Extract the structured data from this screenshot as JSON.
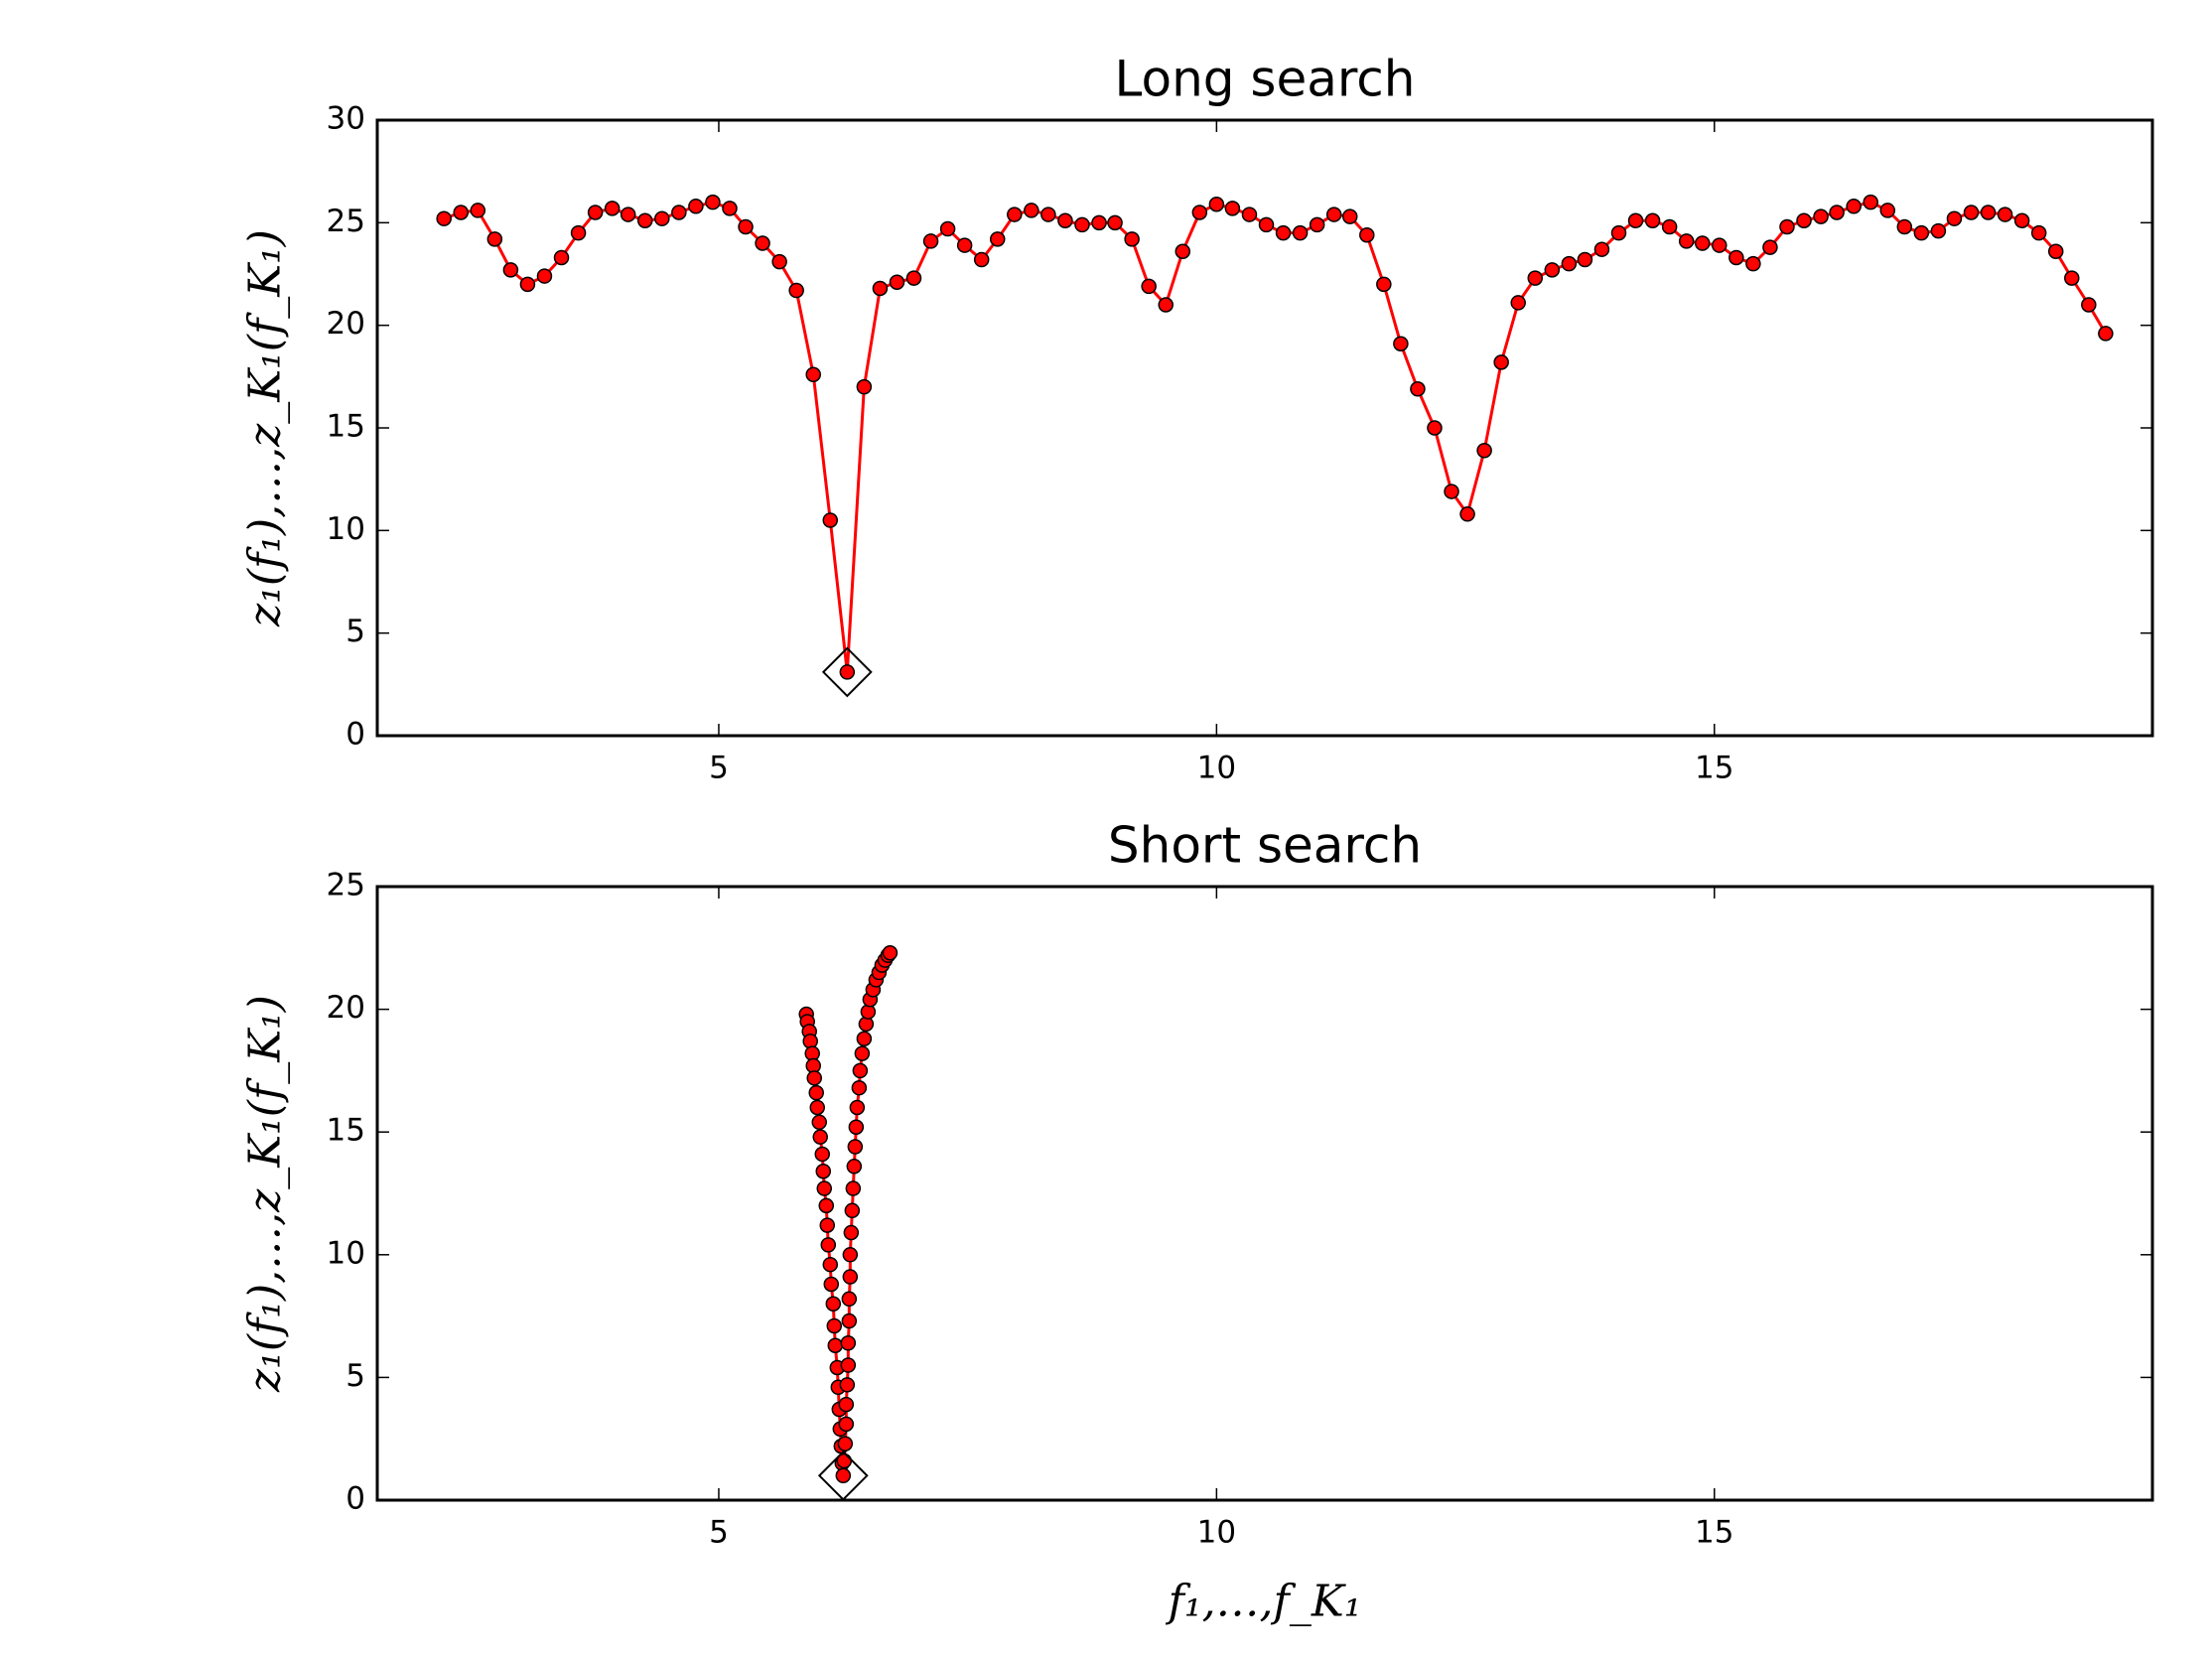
{
  "chart_data": [
    {
      "type": "line",
      "title": "Long search",
      "ylabel": "z₁(f₁),…,z_K₁(f_K₁)",
      "x": [
        2.24,
        2.41,
        2.58,
        2.75,
        2.91,
        3.08,
        3.25,
        3.42,
        3.59,
        3.76,
        3.93,
        4.09,
        4.26,
        4.43,
        4.6,
        4.77,
        4.94,
        5.11,
        5.27,
        5.44,
        5.61,
        5.78,
        5.95,
        6.12,
        6.29,
        6.46,
        6.62,
        6.79,
        6.96,
        7.13,
        7.3,
        7.47,
        7.64,
        7.8,
        7.97,
        8.14,
        8.31,
        8.48,
        8.65,
        8.82,
        8.98,
        9.15,
        9.32,
        9.49,
        9.66,
        9.83,
        10.0,
        10.16,
        10.33,
        10.5,
        10.67,
        10.84,
        11.01,
        11.18,
        11.34,
        11.51,
        11.68,
        11.85,
        12.02,
        12.19,
        12.36,
        12.52,
        12.69,
        12.86,
        13.03,
        13.2,
        13.37,
        13.54,
        13.7,
        13.87,
        14.04,
        14.21,
        14.38,
        14.55,
        14.72,
        14.88,
        15.05,
        15.22,
        15.39,
        15.56,
        15.73,
        15.9,
        16.07,
        16.23,
        16.4,
        16.57,
        16.74,
        16.91,
        17.08,
        17.25,
        17.41,
        17.58,
        17.75,
        17.92,
        18.09,
        18.26,
        18.43,
        18.59,
        18.76,
        18.93
      ],
      "series": [
        {
          "color": "#ff0000",
          "values": [
            25.2,
            25.5,
            25.6,
            24.2,
            22.7,
            22.0,
            22.4,
            23.3,
            24.5,
            25.5,
            25.7,
            25.4,
            25.1,
            25.2,
            25.5,
            25.8,
            26.0,
            25.7,
            24.8,
            24.0,
            23.1,
            21.7,
            17.6,
            10.5,
            3.1,
            17.0,
            21.8,
            22.1,
            22.3,
            24.1,
            24.7,
            23.9,
            23.2,
            24.2,
            25.4,
            25.6,
            25.4,
            25.1,
            24.9,
            25.0,
            25.0,
            24.2,
            21.9,
            21.0,
            23.6,
            25.5,
            25.9,
            25.7,
            25.4,
            24.9,
            24.5,
            24.5,
            24.9,
            25.4,
            25.3,
            24.4,
            22.0,
            19.1,
            16.9,
            15.0,
            11.9,
            10.8,
            13.9,
            18.2,
            21.1,
            22.3,
            22.7,
            23.0,
            23.2,
            23.7,
            24.5,
            25.1,
            25.1,
            24.8,
            24.1,
            24.0,
            23.9,
            23.3,
            23.0,
            23.8,
            24.8,
            25.1,
            25.3,
            25.5,
            25.8,
            26.0,
            25.6,
            24.8,
            24.5,
            24.6,
            25.2,
            25.5,
            25.5,
            25.4,
            25.1,
            24.5,
            23.6,
            22.3,
            21.0,
            19.6
          ]
        }
      ],
      "highlight": {
        "x": 6.29,
        "y": 3.1
      },
      "xlim": [
        1.57,
        19.4
      ],
      "xticks": [
        5,
        10,
        15
      ],
      "ylim": [
        0,
        30
      ],
      "yticks": [
        0,
        5,
        10,
        15,
        20,
        25,
        30
      ]
    },
    {
      "type": "line",
      "title": "Short search",
      "ylabel": "z₁(f₁),…,z_K₁(f_K₁)",
      "xlabel": "f₁,…,f_K₁",
      "x": [
        5.88,
        5.89,
        5.91,
        5.92,
        5.94,
        5.95,
        5.96,
        5.98,
        5.99,
        6.01,
        6.02,
        6.04,
        6.05,
        6.06,
        6.08,
        6.09,
        6.1,
        6.12,
        6.13,
        6.15,
        6.16,
        6.17,
        6.19,
        6.2,
        6.21,
        6.22,
        6.23,
        6.24,
        6.25,
        6.26,
        6.27,
        6.28,
        6.28,
        6.29,
        6.3,
        6.3,
        6.31,
        6.31,
        6.32,
        6.32,
        6.33,
        6.34,
        6.35,
        6.36,
        6.37,
        6.38,
        6.39,
        6.41,
        6.42,
        6.44,
        6.46,
        6.48,
        6.5,
        6.52,
        6.55,
        6.58,
        6.61,
        6.64,
        6.67,
        6.7,
        6.72
      ],
      "series": [
        {
          "color": "#ff0000",
          "values": [
            19.8,
            19.5,
            19.1,
            18.7,
            18.2,
            17.7,
            17.2,
            16.6,
            16.0,
            15.4,
            14.8,
            14.1,
            13.4,
            12.7,
            12.0,
            11.2,
            10.4,
            9.6,
            8.8,
            8.0,
            7.1,
            6.3,
            5.4,
            4.6,
            3.7,
            2.9,
            2.2,
            1.5,
            1.0,
            1.6,
            2.3,
            3.1,
            3.9,
            4.7,
            5.5,
            6.4,
            7.3,
            8.2,
            9.1,
            10.0,
            10.9,
            11.8,
            12.7,
            13.6,
            14.4,
            15.2,
            16.0,
            16.8,
            17.5,
            18.2,
            18.8,
            19.4,
            19.9,
            20.4,
            20.8,
            21.2,
            21.5,
            21.8,
            22.0,
            22.2,
            22.3
          ]
        }
      ],
      "highlight": {
        "x": 6.25,
        "y": 1.0
      },
      "xlim": [
        1.57,
        19.4
      ],
      "xticks": [
        5,
        10,
        15
      ],
      "ylim": [
        0,
        25
      ],
      "yticks": [
        0,
        5,
        10,
        15,
        20,
        25
      ]
    }
  ]
}
